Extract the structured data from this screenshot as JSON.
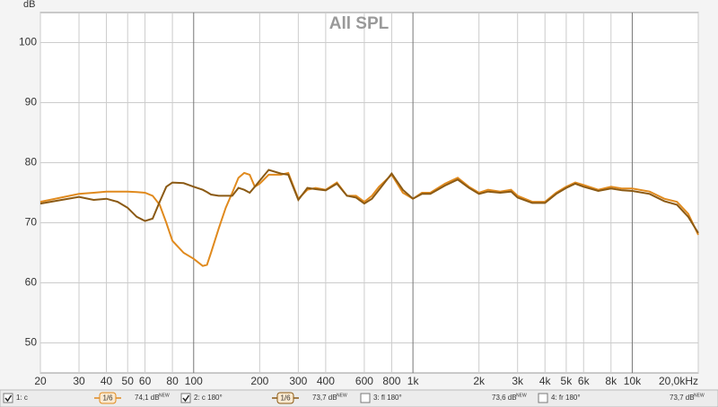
{
  "chart_data": {
    "type": "line",
    "title": "All SPL",
    "y_label": "dB",
    "log_x": true,
    "grid": true,
    "xlim": [
      20,
      20000
    ],
    "ylim": [
      45,
      105
    ],
    "yticks": [
      50,
      60,
      70,
      80,
      90,
      100
    ],
    "xticks": [
      20,
      30,
      40,
      50,
      60,
      80,
      100,
      200,
      300,
      400,
      600,
      800,
      {
        "value": 1000,
        "label": "1k"
      },
      {
        "value": 2000,
        "label": "2k"
      },
      {
        "value": 3000,
        "label": "3k"
      },
      {
        "value": 4000,
        "label": "4k"
      },
      {
        "value": 5000,
        "label": "5k"
      },
      {
        "value": 6000,
        "label": "6k"
      },
      {
        "value": 8000,
        "label": "8k"
      },
      {
        "value": 10000,
        "label": "10k"
      },
      {
        "value": 20000,
        "label": "20,0kHz"
      }
    ],
    "x": [
      20,
      30,
      35,
      40,
      45,
      50,
      55,
      60,
      65,
      70,
      75,
      80,
      90,
      100,
      110,
      115,
      120,
      130,
      140,
      150,
      160,
      170,
      180,
      190,
      200,
      220,
      250,
      270,
      300,
      330,
      360,
      400,
      450,
      500,
      550,
      600,
      650,
      700,
      800,
      900,
      1000,
      1100,
      1200,
      1400,
      1600,
      1800,
      2000,
      2200,
      2500,
      2800,
      3000,
      3500,
      4000,
      4500,
      5000,
      5500,
      6000,
      7000,
      8000,
      9000,
      10000,
      12000,
      14000,
      16000,
      18000,
      20000
    ],
    "level_tag": "NEW",
    "series": [
      {
        "name": "1: c",
        "color": "#e08a1e",
        "checked": true,
        "smoothing": "1/6",
        "level": "74,1 dB",
        "values": [
          73.5,
          74.8,
          75,
          75.2,
          75.2,
          75.2,
          75.1,
          75,
          74.5,
          73,
          70,
          67,
          65,
          64,
          62.8,
          63,
          65,
          69,
          72.5,
          75,
          77.5,
          78.3,
          78,
          76,
          76.5,
          78,
          78,
          78.3,
          74,
          75.5,
          75.8,
          75.5,
          76.7,
          74.5,
          74.5,
          73.5,
          74.5,
          76,
          78,
          75,
          74,
          75,
          75,
          76.5,
          77.5,
          76,
          75,
          75.5,
          75.2,
          75.5,
          74.5,
          73.5,
          73.5,
          75,
          76,
          76.7,
          76.3,
          75.5,
          76,
          75.7,
          75.7,
          75.2,
          74,
          73.5,
          71.5,
          68
        ]
      },
      {
        "name": "2: c 180°",
        "color": "#8b5a14",
        "checked": true,
        "smoothing": "1/6",
        "level": "73,7 dB",
        "values": [
          73.2,
          74.3,
          73.8,
          74,
          73.5,
          72.5,
          71,
          70.3,
          70.7,
          73.5,
          76,
          76.7,
          76.6,
          76,
          75.5,
          75.1,
          74.7,
          74.5,
          74.5,
          74.5,
          75.8,
          75.5,
          75,
          76,
          77,
          78.8,
          78.2,
          78,
          73.8,
          75.8,
          75.6,
          75.4,
          76.5,
          74.5,
          74.2,
          73.2,
          74,
          75.5,
          78.2,
          75.5,
          74,
          74.8,
          74.8,
          76.2,
          77.2,
          75.8,
          74.8,
          75.2,
          75,
          75.2,
          74.2,
          73.3,
          73.3,
          74.8,
          75.8,
          76.5,
          76,
          75.3,
          75.7,
          75.4,
          75.3,
          74.8,
          73.6,
          73,
          71,
          68.3
        ]
      }
    ],
    "inactive_series": [
      {
        "name": "3: fl 180°",
        "color": "#2a9d9d",
        "checked": false,
        "level": "73,6 dB"
      },
      {
        "name": "4: fr 180°",
        "color": "#9040c8",
        "checked": false,
        "level": "73,7 dB"
      }
    ]
  }
}
